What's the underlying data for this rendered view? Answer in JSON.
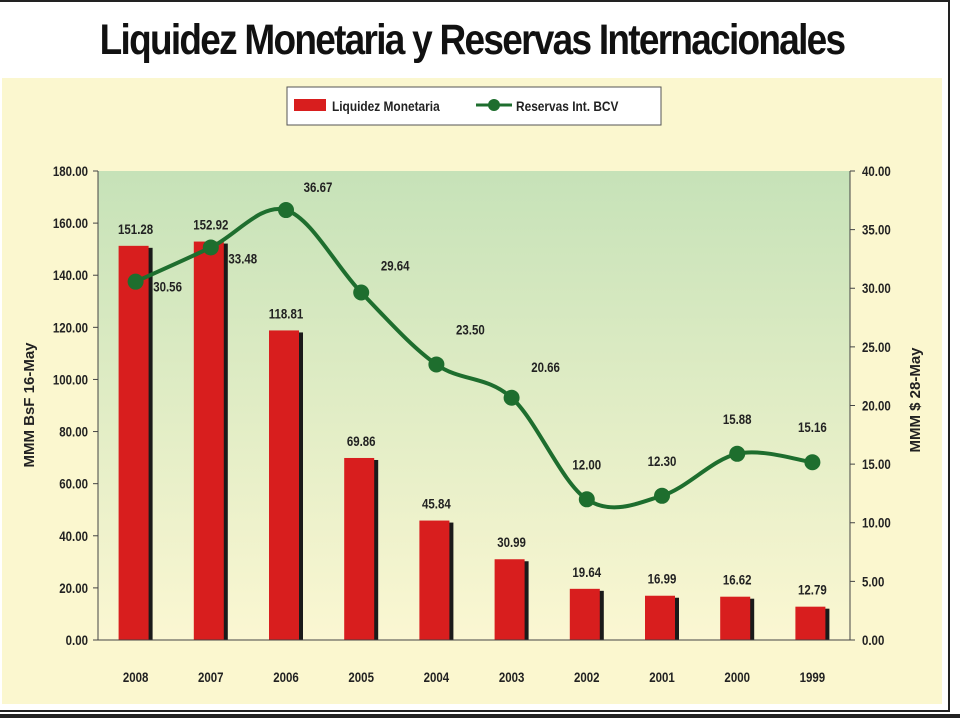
{
  "header": {
    "title": "Liquidez Monetaria y Reservas Internacionales"
  },
  "colors": {
    "bar": "#d81e1e",
    "line": "#1e6e2e",
    "panel": "#fbf7cf",
    "plot_top": "#c6e2b8",
    "plot_bottom": "#fbf7d2"
  },
  "chart_data": {
    "type": "bar",
    "categories": [
      "2008",
      "2007",
      "2006",
      "2005",
      "2004",
      "2003",
      "2002",
      "2001",
      "2000",
      "1999"
    ],
    "series": [
      {
        "name": "Liquidez Monetaria",
        "type": "bar",
        "axis": "left",
        "values": [
          151.28,
          152.92,
          118.81,
          69.86,
          45.84,
          30.99,
          19.64,
          16.99,
          16.62,
          12.79
        ],
        "labels": [
          "151.28",
          "152.92",
          "118.81",
          "69.86",
          "45.84",
          "30.99",
          "19.64",
          "16.99",
          "16.62",
          "12.79"
        ]
      },
      {
        "name": "Reservas Int. BCV",
        "type": "line",
        "axis": "right",
        "values": [
          30.56,
          33.48,
          36.67,
          29.64,
          23.5,
          20.66,
          12.0,
          12.3,
          15.88,
          15.16
        ],
        "labels": [
          "30.56",
          "33.48",
          "36.67",
          "29.64",
          "23.50",
          "20.66",
          "12.00",
          "12.30",
          "15.88",
          "15.16"
        ]
      }
    ],
    "ylabel_left": "MMM BsF 16-May",
    "ylabel_right": "MMM $ 28-May",
    "ylim_left": [
      0,
      180
    ],
    "ylim_right": [
      0,
      40
    ],
    "yticks_left": [
      "0.00",
      "20.00",
      "40.00",
      "60.00",
      "80.00",
      "100.00",
      "120.00",
      "140.00",
      "160.00",
      "180.00"
    ],
    "yticks_right": [
      "0.00",
      "5.00",
      "10.00",
      "15.00",
      "20.00",
      "25.00",
      "30.00",
      "35.00",
      "40.00"
    ],
    "legend_position": "top-center",
    "grid": false
  }
}
